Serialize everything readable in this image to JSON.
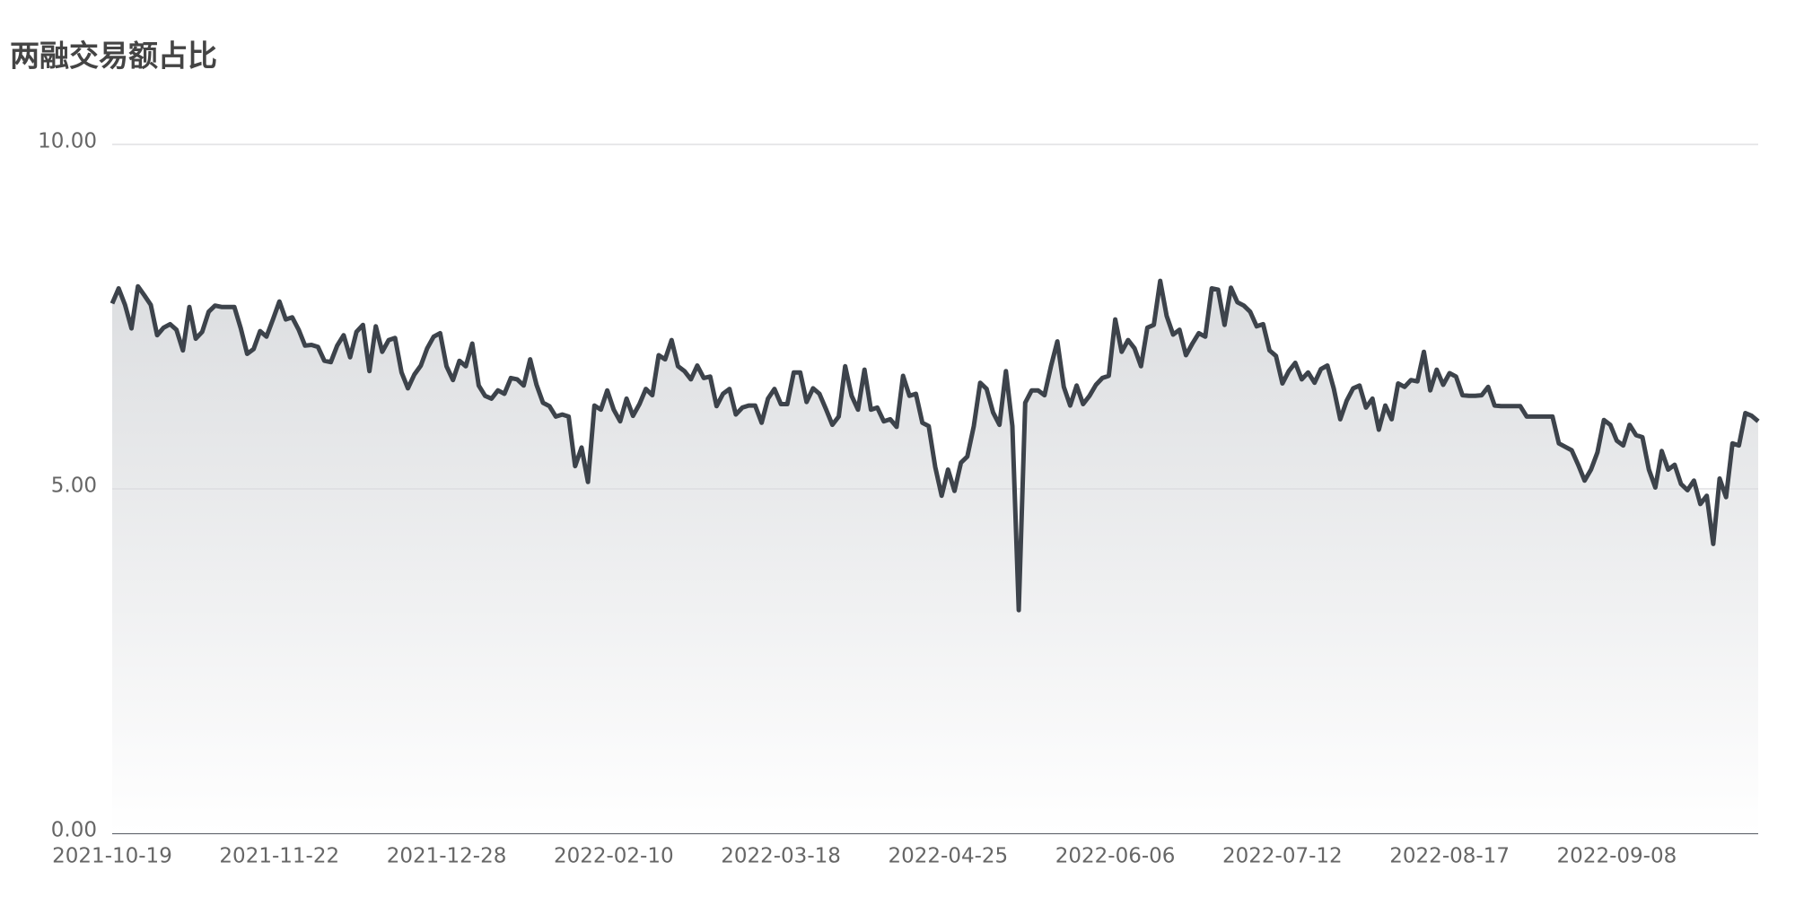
{
  "chart_data": {
    "type": "line",
    "title": "两融交易额占比",
    "categories": [
      "2021-10-19",
      null,
      null,
      null,
      null,
      null,
      null,
      null,
      null,
      null,
      null,
      null,
      null,
      null,
      null,
      null,
      null,
      null,
      null,
      null,
      null,
      null,
      null,
      null,
      null,
      null,
      "2021-11-22",
      null,
      null,
      null,
      null,
      null,
      null,
      null,
      null,
      null,
      null,
      null,
      null,
      null,
      null,
      null,
      null,
      null,
      null,
      null,
      null,
      null,
      null,
      null,
      null,
      null,
      "2021-12-28",
      null,
      null,
      null,
      null,
      null,
      null,
      null,
      null,
      null,
      null,
      null,
      null,
      null,
      null,
      null,
      null,
      null,
      null,
      null,
      null,
      null,
      null,
      null,
      null,
      null,
      "2022-02-10",
      null,
      null,
      null,
      null,
      null,
      null,
      null,
      null,
      null,
      null,
      null,
      null,
      null,
      null,
      null,
      null,
      null,
      null,
      null,
      null,
      null,
      null,
      null,
      null,
      null,
      "2022-03-18",
      null,
      null,
      null,
      null,
      null,
      null,
      null,
      null,
      null,
      null,
      null,
      null,
      null,
      null,
      null,
      null,
      null,
      null,
      null,
      null,
      null,
      null,
      null,
      null,
      null,
      "2022-04-25",
      null,
      null,
      null,
      null,
      null,
      null,
      null,
      null,
      null,
      null,
      null,
      null,
      null,
      null,
      null,
      null,
      null,
      null,
      null,
      null,
      null,
      null,
      null,
      null,
      null,
      "2022-06-06",
      null,
      null,
      null,
      null,
      null,
      null,
      null,
      null,
      null,
      null,
      null,
      null,
      null,
      null,
      null,
      null,
      null,
      null,
      null,
      null,
      null,
      null,
      null,
      null,
      null,
      "2022-07-12",
      null,
      null,
      null,
      null,
      null,
      null,
      null,
      null,
      null,
      null,
      null,
      null,
      null,
      null,
      null,
      null,
      null,
      null,
      null,
      null,
      null,
      null,
      null,
      null,
      null,
      "2022-08-17",
      null,
      null,
      null,
      null,
      null,
      null,
      null,
      null,
      null,
      null,
      null,
      null,
      null,
      null,
      null,
      null,
      null,
      null,
      null,
      null,
      null,
      null,
      null,
      null,
      null,
      "2022-09-08",
      null,
      null,
      null,
      null,
      null,
      null,
      null,
      null,
      null,
      null,
      null,
      null,
      null,
      null,
      null,
      null,
      null,
      null,
      null,
      null,
      null,
      null
    ],
    "values": [
      7.69,
      7.91,
      7.67,
      7.33,
      7.94,
      7.81,
      7.67,
      7.23,
      7.34,
      7.39,
      7.31,
      7.01,
      7.64,
      7.18,
      7.28,
      7.57,
      7.66,
      7.64,
      7.64,
      7.64,
      7.33,
      6.96,
      7.03,
      7.29,
      7.21,
      7.46,
      7.72,
      7.46,
      7.49,
      7.31,
      7.08,
      7.09,
      7.06,
      6.86,
      6.84,
      7.08,
      7.23,
      6.91,
      7.28,
      7.38,
      6.71,
      7.36,
      6.99,
      7.16,
      7.19,
      6.69,
      6.46,
      6.66,
      6.79,
      7.04,
      7.21,
      7.26,
      6.78,
      6.58,
      6.86,
      6.78,
      7.11,
      6.5,
      6.35,
      6.31,
      6.43,
      6.38,
      6.61,
      6.59,
      6.5,
      6.88,
      6.51,
      6.25,
      6.2,
      6.05,
      6.08,
      6.05,
      5.33,
      5.6,
      5.1,
      6.21,
      6.15,
      6.43,
      6.15,
      5.98,
      6.31,
      6.06,
      6.23,
      6.45,
      6.36,
      6.94,
      6.88,
      7.16,
      6.78,
      6.71,
      6.59,
      6.79,
      6.61,
      6.63,
      6.2,
      6.38,
      6.45,
      6.08,
      6.18,
      6.21,
      6.21,
      5.96,
      6.31,
      6.45,
      6.23,
      6.23,
      6.69,
      6.69,
      6.26,
      6.46,
      6.38,
      6.16,
      5.93,
      6.05,
      6.78,
      6.35,
      6.15,
      6.73,
      6.15,
      6.18,
      5.98,
      6.01,
      5.9,
      6.64,
      6.35,
      6.38,
      5.96,
      5.91,
      5.32,
      4.9,
      5.28,
      4.97,
      5.38,
      5.47,
      5.91,
      6.54,
      6.45,
      6.11,
      5.93,
      6.71,
      5.91,
      3.24,
      6.25,
      6.43,
      6.43,
      6.36,
      6.78,
      7.14,
      6.48,
      6.21,
      6.5,
      6.23,
      6.35,
      6.51,
      6.61,
      6.64,
      7.46,
      6.99,
      7.16,
      7.04,
      6.78,
      7.34,
      7.38,
      8.02,
      7.51,
      7.24,
      7.31,
      6.94,
      7.11,
      7.26,
      7.21,
      7.91,
      7.89,
      7.38,
      7.92,
      7.71,
      7.66,
      7.57,
      7.36,
      7.39,
      7.01,
      6.93,
      6.53,
      6.71,
      6.83,
      6.59,
      6.69,
      6.54,
      6.74,
      6.79,
      6.45,
      6.01,
      6.28,
      6.46,
      6.5,
      6.18,
      6.31,
      5.86,
      6.21,
      6.01,
      6.53,
      6.48,
      6.58,
      6.56,
      6.99,
      6.43,
      6.73,
      6.51,
      6.68,
      6.63,
      6.36,
      6.35,
      6.35,
      6.36,
      6.48,
      6.21,
      6.2,
      6.2,
      6.2,
      6.2,
      6.05,
      6.05,
      6.05,
      6.05,
      6.05,
      5.66,
      5.61,
      5.56,
      5.35,
      5.12,
      5.28,
      5.53,
      6.0,
      5.93,
      5.7,
      5.63,
      5.93,
      5.78,
      5.75,
      5.28,
      5.02,
      5.55,
      5.28,
      5.35,
      5.07,
      4.98,
      5.12,
      4.78,
      4.9,
      4.2,
      5.15,
      4.88,
      5.66,
      5.63,
      6.1,
      6.06,
      5.98
    ],
    "color": "#3d434b",
    "ylim": [
      0,
      10
    ],
    "yticks": [
      {
        "value": 0,
        "label": "0.00"
      },
      {
        "value": 5,
        "label": "5.00"
      },
      {
        "value": 10,
        "label": "10.00"
      }
    ],
    "grid": true
  }
}
